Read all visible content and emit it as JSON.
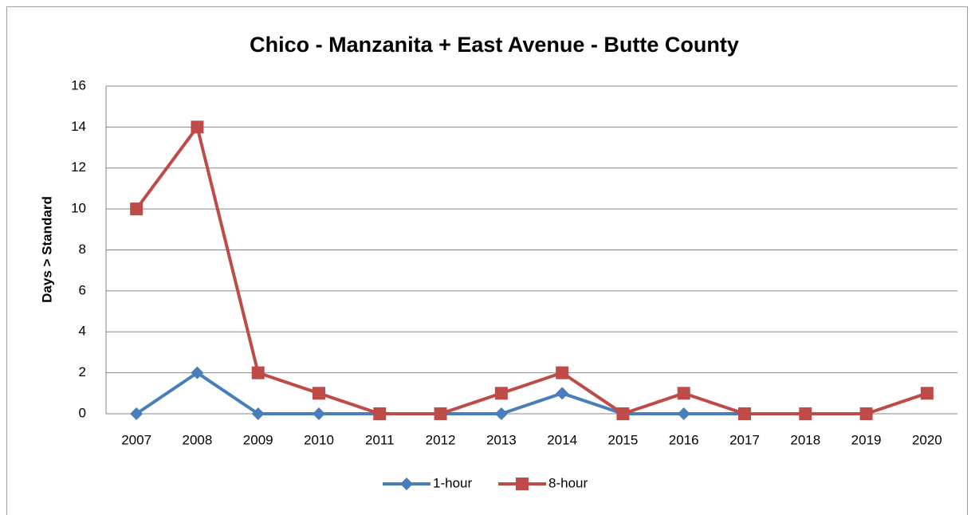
{
  "chart_data": {
    "type": "line",
    "title": "Chico - Manzanita + East Avenue - Butte County",
    "y_label": "Days > Standard",
    "categories": [
      "2007",
      "2008",
      "2009",
      "2010",
      "2011",
      "2012",
      "2013",
      "2014",
      "2015",
      "2016",
      "2017",
      "2018",
      "2019",
      "2020"
    ],
    "series": [
      {
        "name": "1-hour",
        "color": "#4a7ebb",
        "marker": "diamond",
        "values": [
          0,
          2,
          0,
          0,
          0,
          0,
          0,
          1,
          0,
          0,
          0,
          null,
          null,
          null
        ]
      },
      {
        "name": "8-hour",
        "color": "#be4b48",
        "marker": "square",
        "values": [
          10,
          14,
          2,
          1,
          0,
          0,
          1,
          2,
          0,
          1,
          0,
          0,
          0,
          1
        ]
      }
    ],
    "ylim": [
      0,
      16
    ],
    "yticks": [
      0,
      2,
      4,
      6,
      8,
      10,
      12,
      14,
      16
    ],
    "grid": true,
    "legend": "bottom"
  }
}
